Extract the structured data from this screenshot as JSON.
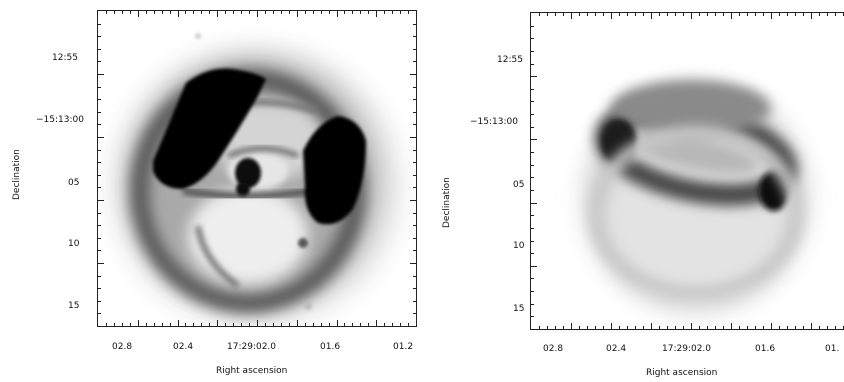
{
  "left_panel": {
    "ylabel": "Declination",
    "xlabel": "Right ascension",
    "yticks": [
      "12:55",
      "−15:13:00",
      "05",
      "10",
      "15"
    ],
    "xticks": [
      "02.8",
      "02.4",
      "17:29:02.0",
      "01.6",
      "01.2"
    ]
  },
  "right_panel": {
    "ylabel": "Declination",
    "xlabel": "Right ascension",
    "yticks": [
      "12:55",
      "−15:13:00",
      "05",
      "10",
      "15"
    ],
    "xticks": [
      "02.8",
      "02.4",
      "17:29:02.0",
      "01.6",
      "01."
    ]
  }
}
